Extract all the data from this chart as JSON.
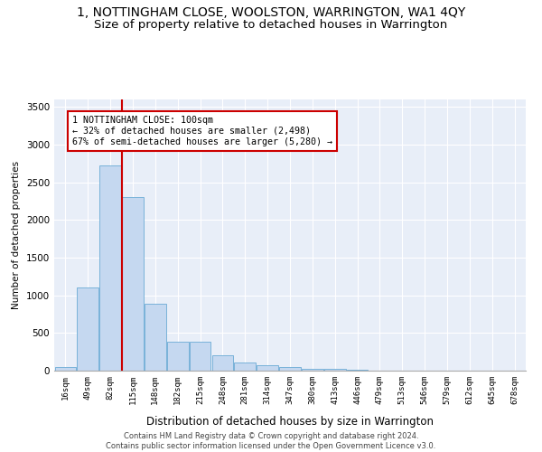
{
  "title": "1, NOTTINGHAM CLOSE, WOOLSTON, WARRINGTON, WA1 4QY",
  "subtitle": "Size of property relative to detached houses in Warrington",
  "xlabel": "Distribution of detached houses by size in Warrington",
  "ylabel": "Number of detached properties",
  "bar_labels": [
    "16sqm",
    "49sqm",
    "82sqm",
    "115sqm",
    "148sqm",
    "182sqm",
    "215sqm",
    "248sqm",
    "281sqm",
    "314sqm",
    "347sqm",
    "380sqm",
    "413sqm",
    "446sqm",
    "479sqm",
    "513sqm",
    "546sqm",
    "579sqm",
    "612sqm",
    "645sqm",
    "678sqm"
  ],
  "bar_values": [
    50,
    1100,
    2730,
    2300,
    890,
    390,
    390,
    200,
    105,
    75,
    50,
    30,
    20,
    10,
    5,
    3,
    1,
    0,
    0,
    0,
    0
  ],
  "bar_color": "#c5d8f0",
  "bar_edge_color": "#6aaad4",
  "vline_x_index": 2.5,
  "annotation_text": "1 NOTTINGHAM CLOSE: 100sqm\n← 32% of detached houses are smaller (2,498)\n67% of semi-detached houses are larger (5,280) →",
  "annotation_box_color": "#ffffff",
  "annotation_box_edge": "#cc0000",
  "vline_color": "#cc0000",
  "ylim": [
    0,
    3600
  ],
  "yticks": [
    0,
    500,
    1000,
    1500,
    2000,
    2500,
    3000,
    3500
  ],
  "footer_line1": "Contains HM Land Registry data © Crown copyright and database right 2024.",
  "footer_line2": "Contains public sector information licensed under the Open Government Licence v3.0.",
  "plot_bg_color": "#e8eef8",
  "title_fontsize": 10,
  "subtitle_fontsize": 9.5
}
